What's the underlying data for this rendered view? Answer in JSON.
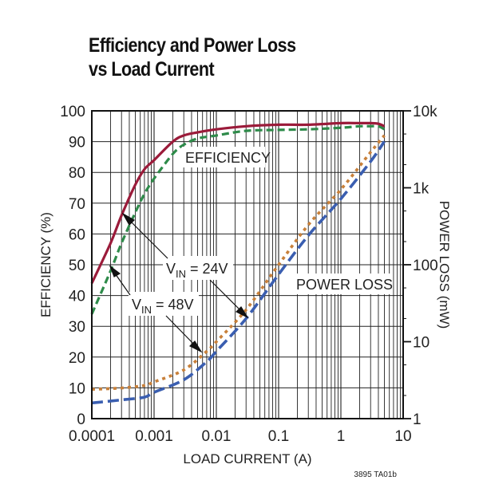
{
  "title_line1": "Efficiency and Power Loss",
  "title_line2": "vs Load Current",
  "figure_code": "3895 TA01b",
  "colors": {
    "eff_24v": "#9b1b3a",
    "eff_48v": "#2e8b4a",
    "loss_24v": "#c8803a",
    "loss_48v": "#3a5eb0",
    "grid": "#222222"
  },
  "labels": {
    "efficiency": "EFFICIENCY",
    "power_loss": "POWER LOSS",
    "vin24_v": "V",
    "vin24_sub": "IN",
    "vin24_rest": " = 24V",
    "vin48_v": "V",
    "vin48_sub": "IN",
    "vin48_rest": " = 48V"
  },
  "chart_data": {
    "type": "line",
    "title": "Efficiency and Power Loss vs Load Current",
    "xlabel": "LOAD CURRENT (A)",
    "ylabel": "EFFICIENCY (%)",
    "y2label": "POWER LOSS (mW)",
    "xscale": "log",
    "xlim": [
      0.0001,
      10
    ],
    "ylim": [
      0,
      100
    ],
    "y2scale": "log",
    "y2lim": [
      1,
      10000
    ],
    "x_ticks": [
      "0.0001",
      "0.001",
      "0.01",
      "0.1",
      "1",
      "10"
    ],
    "y_ticks": [
      "0",
      "10",
      "20",
      "30",
      "40",
      "50",
      "60",
      "70",
      "80",
      "90",
      "100"
    ],
    "y2_ticks": [
      "1",
      "10",
      "100",
      "1k",
      "10k"
    ],
    "grid": true,
    "annotations": [
      "EFFICIENCY",
      "POWER LOSS",
      "VIN = 24V",
      "VIN = 48V"
    ],
    "series": [
      {
        "name": "Efficiency VIN = 24V",
        "axis": "left",
        "style": "solid",
        "x": [
          0.0001,
          0.0002,
          0.0003,
          0.0005,
          0.0007,
          0.001,
          0.002,
          0.003,
          0.005,
          0.01,
          0.03,
          0.1,
          0.3,
          1,
          2,
          3,
          4,
          5
        ],
        "y": [
          44,
          57,
          66,
          76,
          81,
          84,
          90,
          92,
          93,
          94,
          95,
          95.5,
          95.5,
          96,
          96,
          96,
          95.8,
          95
        ]
      },
      {
        "name": "Efficiency VIN = 48V",
        "axis": "left",
        "style": "dashed",
        "x": [
          0.0001,
          0.0002,
          0.0003,
          0.0005,
          0.0007,
          0.001,
          0.002,
          0.003,
          0.005,
          0.01,
          0.03,
          0.1,
          0.3,
          1,
          2,
          3,
          4,
          5
        ],
        "y": [
          34,
          48,
          57,
          67,
          73,
          78,
          86,
          89,
          91,
          92,
          93.5,
          93.8,
          94,
          94.5,
          95,
          95,
          95,
          94
        ]
      },
      {
        "name": "Power Loss VIN = 24V",
        "axis": "right",
        "style": "dotted",
        "x": [
          0.0001,
          0.0003,
          0.0007,
          0.001,
          0.003,
          0.007,
          0.01,
          0.03,
          0.1,
          0.3,
          1,
          3,
          5
        ],
        "y": [
          2.4,
          2.5,
          2.7,
          3.0,
          4.3,
          7.5,
          10,
          26,
          100,
          330,
          950,
          2900,
          4800
        ]
      },
      {
        "name": "Power Loss VIN = 48V",
        "axis": "right",
        "style": "dashed",
        "x": [
          0.0001,
          0.0003,
          0.0007,
          0.001,
          0.003,
          0.007,
          0.01,
          0.03,
          0.1,
          0.3,
          1,
          3,
          5
        ],
        "y": [
          1.6,
          1.75,
          1.9,
          2.2,
          3.2,
          5.5,
          7.5,
          20,
          75,
          240,
          720,
          2200,
          4000
        ]
      }
    ]
  }
}
